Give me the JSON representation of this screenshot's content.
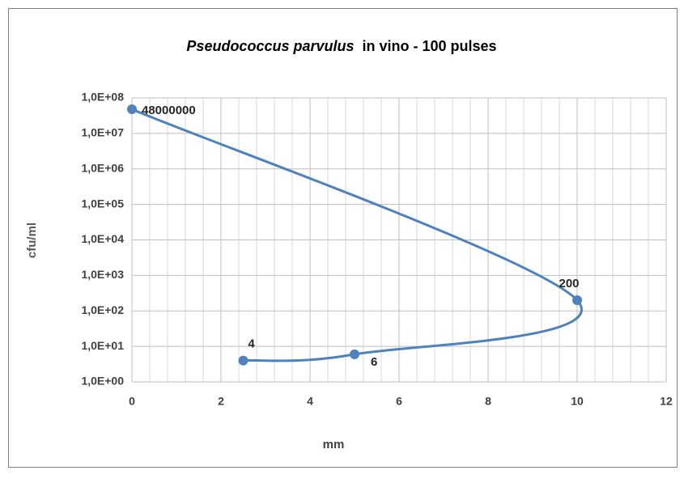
{
  "chart_data": {
    "type": "scatter",
    "title_italic": "Pseudococcus parvulus",
    "title": "in vino - 100 pulses",
    "x_label": "mm",
    "y_label": "cfu/ml",
    "log_y": true,
    "grid": true,
    "smooth": true,
    "xlim": [
      0,
      12
    ],
    "xticks": [
      0,
      2,
      4,
      6,
      8,
      10,
      12
    ],
    "ylim": [
      1,
      100000000
    ],
    "yticks": [
      {
        "value": 1,
        "label": "1,0E+00"
      },
      {
        "value": 10,
        "label": "1,0E+01"
      },
      {
        "value": 100,
        "label": "1,0E+02"
      },
      {
        "value": 1000,
        "label": "1,0E+03"
      },
      {
        "value": 10000,
        "label": "1,0E+04"
      },
      {
        "value": 100000,
        "label": "1,0E+05"
      },
      {
        "value": 1000000,
        "label": "1,0E+06"
      },
      {
        "value": 10000000,
        "label": "1,0E+07"
      },
      {
        "value": 100000000,
        "label": "1,0E+08"
      }
    ],
    "series": [
      {
        "color": "#4f81bd",
        "x": [
          0,
          10,
          5,
          2.5
        ],
        "values": [
          48000000,
          200,
          6,
          4
        ]
      }
    ]
  }
}
